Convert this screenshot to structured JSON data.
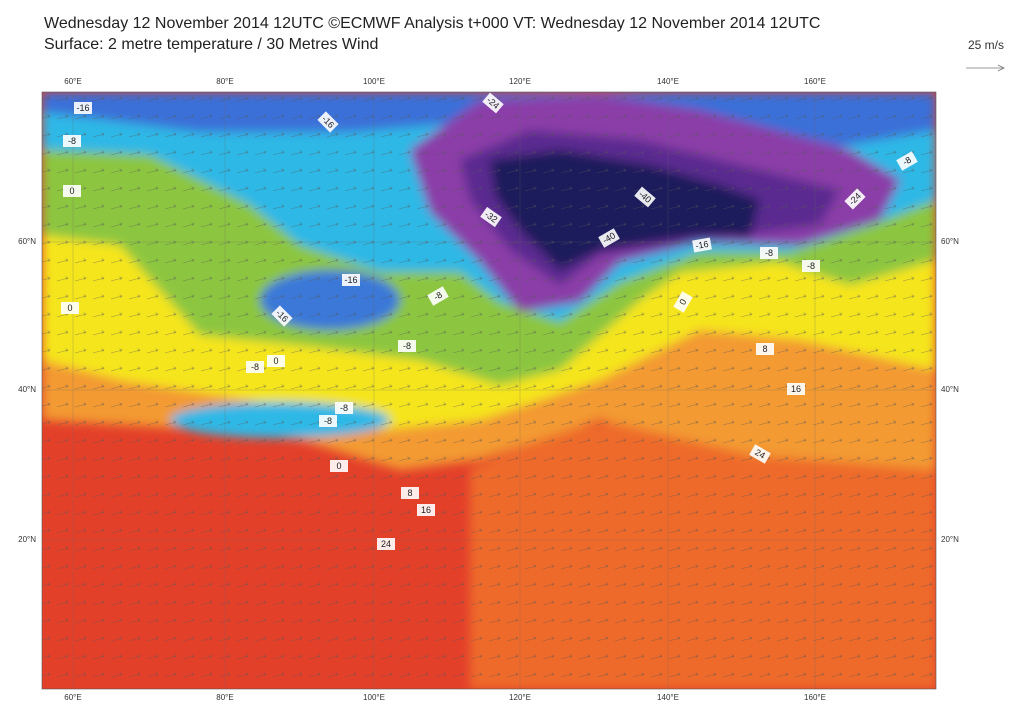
{
  "header": {
    "title_line1": "Wednesday 12 November 2014 12UTC ©ECMWF Analysis t+000 VT: Wednesday 12 November 2014 12UTC",
    "title_line2": "Surface: 2 metre temperature / 30 Metres Wind"
  },
  "legend": {
    "wind_scale": "25 m/s"
  },
  "map": {
    "lon_labels": [
      "60°E",
      "80°E",
      "100°E",
      "120°E",
      "140°E",
      "160°E"
    ],
    "lat_labels": [
      "60°N",
      "40°N",
      "20°N"
    ],
    "contour_labels": [
      -16,
      -24,
      -16,
      -8,
      -8,
      0,
      -40,
      -24,
      -32,
      -40,
      -16,
      -8,
      -8,
      -16,
      -8,
      0,
      0,
      -16,
      -8,
      8,
      0,
      -8,
      16,
      -8,
      -8,
      24,
      0,
      8,
      16,
      24
    ]
  }
}
